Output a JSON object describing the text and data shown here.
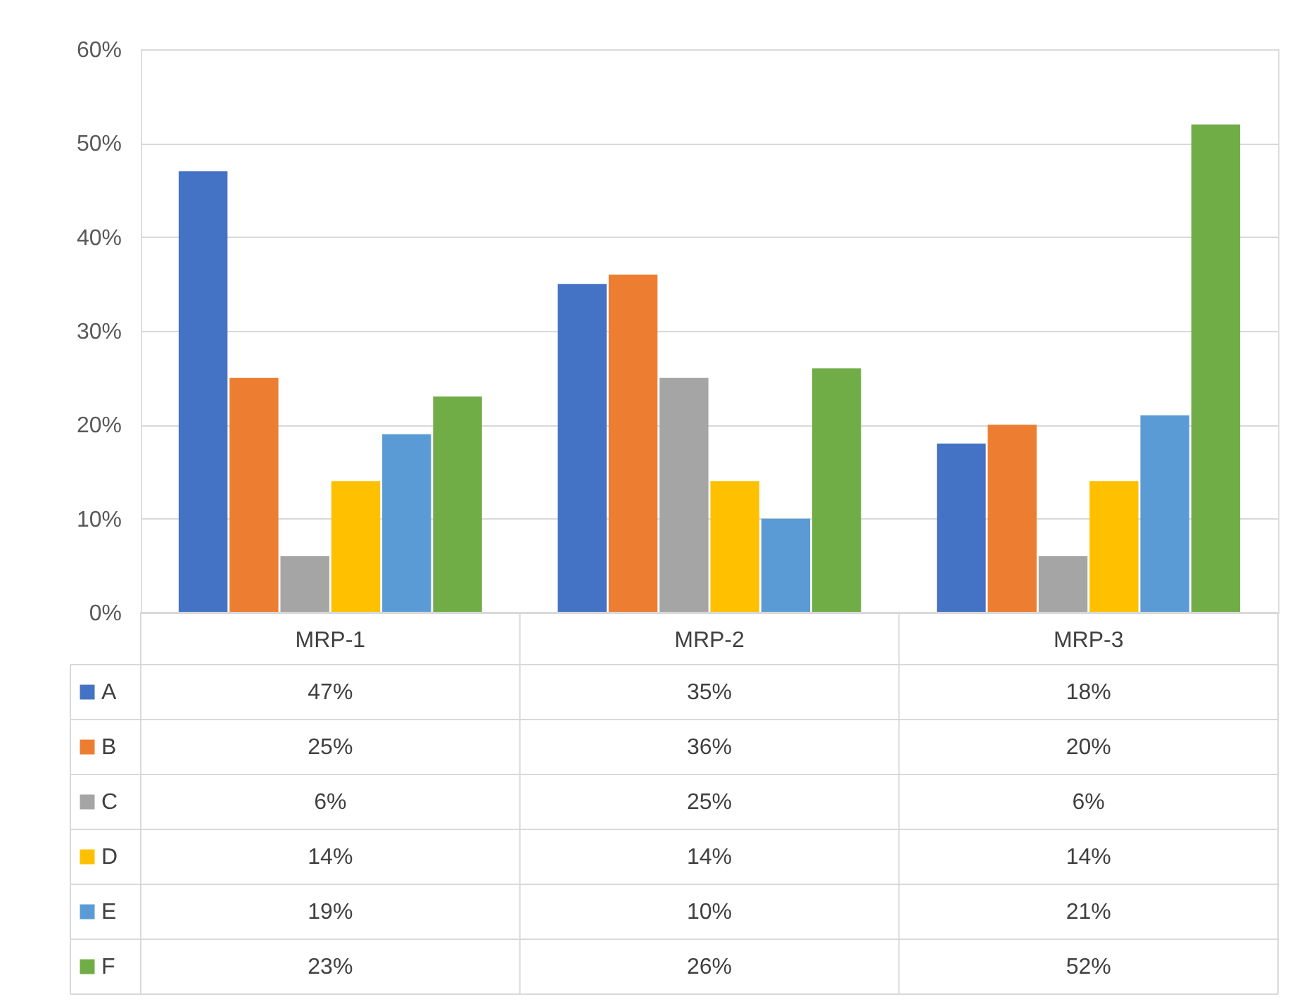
{
  "chart_data": {
    "type": "bar",
    "categories": [
      "MRP-1",
      "MRP-2",
      "MRP-3"
    ],
    "series": [
      {
        "name": "A",
        "color": "#4472c4",
        "values": [
          47,
          35,
          18
        ],
        "value_labels": [
          "47%",
          "35%",
          "18%"
        ]
      },
      {
        "name": "B",
        "color": "#ed7d31",
        "values": [
          25,
          36,
          20
        ],
        "value_labels": [
          "25%",
          "36%",
          "20%"
        ]
      },
      {
        "name": "C",
        "color": "#a5a5a5",
        "values": [
          6,
          25,
          6
        ],
        "value_labels": [
          "6%",
          "25%",
          "6%"
        ]
      },
      {
        "name": "D",
        "color": "#ffc000",
        "values": [
          14,
          14,
          14
        ],
        "value_labels": [
          "14%",
          "14%",
          "14%"
        ]
      },
      {
        "name": "E",
        "color": "#5b9bd5",
        "values": [
          19,
          10,
          21
        ],
        "value_labels": [
          "19%",
          "10%",
          "21%"
        ]
      },
      {
        "name": "F",
        "color": "#70ad47",
        "values": [
          23,
          26,
          52
        ],
        "value_labels": [
          "23%",
          "26%",
          "52%"
        ]
      }
    ],
    "ylim": [
      0,
      60
    ],
    "yticks": [
      {
        "value": 0,
        "label": "0%"
      },
      {
        "value": 10,
        "label": "10%"
      },
      {
        "value": 20,
        "label": "20%"
      },
      {
        "value": 30,
        "label": "30%"
      },
      {
        "value": 40,
        "label": "40%"
      },
      {
        "value": 50,
        "label": "50%"
      },
      {
        "value": 60,
        "label": "60%"
      }
    ],
    "grid": "y",
    "legend": "bottom"
  }
}
